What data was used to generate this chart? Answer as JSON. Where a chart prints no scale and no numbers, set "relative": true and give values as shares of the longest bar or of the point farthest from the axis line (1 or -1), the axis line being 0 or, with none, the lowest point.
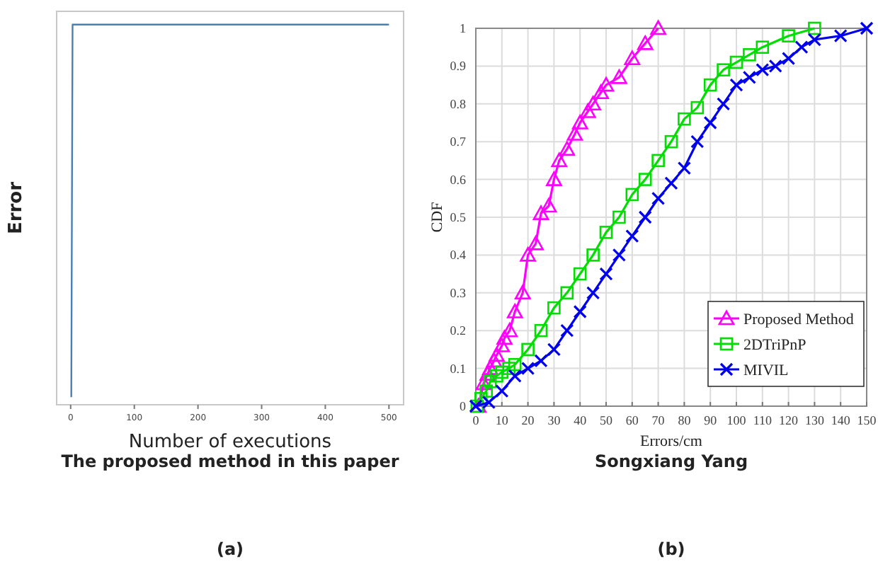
{
  "chart_data": [
    {
      "type": "line",
      "xlabel": "Number of executions",
      "ylabel": "Error",
      "relative": true,
      "tick_labels": "x",
      "xlim": [
        -22,
        523
      ],
      "xticks": [
        0,
        100,
        200,
        300,
        400,
        500
      ],
      "marker": "none",
      "line_style": "solid",
      "grid": false,
      "legend": false,
      "series": [
        {
          "color": "#4a7fb5",
          "x": [
            1,
            3,
            500
          ],
          "values": [
            0.02,
            1,
            1
          ]
        }
      ],
      "annotations": [
        "The proposed method in this paper",
        "(a)"
      ]
    },
    {
      "type": "line",
      "xlabel": "Errors/cm",
      "ylabel": "CDF",
      "xlim": [
        0,
        150
      ],
      "xticks": [
        0,
        10,
        20,
        30,
        40,
        50,
        60,
        70,
        80,
        90,
        100,
        110,
        120,
        130,
        140,
        150
      ],
      "ylim": [
        0,
        1
      ],
      "yticks": [
        0,
        0.1,
        0.2,
        0.3,
        0.4,
        0.5,
        0.6,
        0.7,
        0.8,
        0.9,
        1
      ],
      "grid": true,
      "legend": "bottom right",
      "line_style": "solid",
      "series": [
        {
          "name": "Proposed Method",
          "color": "#ff00ff",
          "marker": "triangle",
          "x": [
            1,
            3,
            4.5,
            5.5,
            7,
            8,
            10,
            11,
            13,
            15,
            18,
            20,
            23,
            25,
            28,
            30,
            32,
            35,
            38,
            40,
            43,
            45,
            48,
            50,
            55,
            60,
            65,
            70
          ],
          "values": [
            0,
            0.06,
            0.085,
            0.1,
            0.12,
            0.135,
            0.16,
            0.18,
            0.2,
            0.25,
            0.3,
            0.4,
            0.43,
            0.51,
            0.53,
            0.6,
            0.65,
            0.68,
            0.72,
            0.75,
            0.78,
            0.8,
            0.83,
            0.85,
            0.87,
            0.92,
            0.96,
            1
          ]
        },
        {
          "name": "2DTriPnP",
          "color": "#00dd00",
          "marker": "square",
          "x": [
            0.5,
            2,
            4,
            5.5,
            8,
            10,
            12.7,
            15,
            20,
            25,
            30,
            35,
            40,
            45,
            50,
            55,
            60,
            65,
            70,
            75,
            80,
            85,
            90,
            95,
            100,
            105,
            110,
            120,
            130
          ],
          "values": [
            0,
            0.02,
            0.04,
            0.065,
            0.08,
            0.09,
            0.1,
            0.11,
            0.15,
            0.2,
            0.26,
            0.3,
            0.35,
            0.4,
            0.46,
            0.5,
            0.56,
            0.6,
            0.65,
            0.7,
            0.76,
            0.79,
            0.85,
            0.89,
            0.91,
            0.93,
            0.95,
            0.98,
            1
          ]
        },
        {
          "name": "MIVIL",
          "color": "#0000ee",
          "marker": "cross",
          "x": [
            0,
            5,
            10,
            15,
            20,
            25,
            30,
            35,
            40,
            45,
            50,
            55,
            60,
            65,
            70,
            75,
            80,
            85,
            90,
            95,
            100,
            105,
            110,
            115,
            120,
            125,
            130,
            140,
            150
          ],
          "values": [
            0,
            0.01,
            0.04,
            0.08,
            0.1,
            0.12,
            0.15,
            0.2,
            0.25,
            0.3,
            0.35,
            0.4,
            0.45,
            0.5,
            0.55,
            0.59,
            0.63,
            0.7,
            0.75,
            0.8,
            0.85,
            0.87,
            0.89,
            0.9,
            0.92,
            0.95,
            0.97,
            0.98,
            1
          ]
        }
      ],
      "annotations": [
        "Songxiang Yang",
        "(b)"
      ]
    }
  ]
}
